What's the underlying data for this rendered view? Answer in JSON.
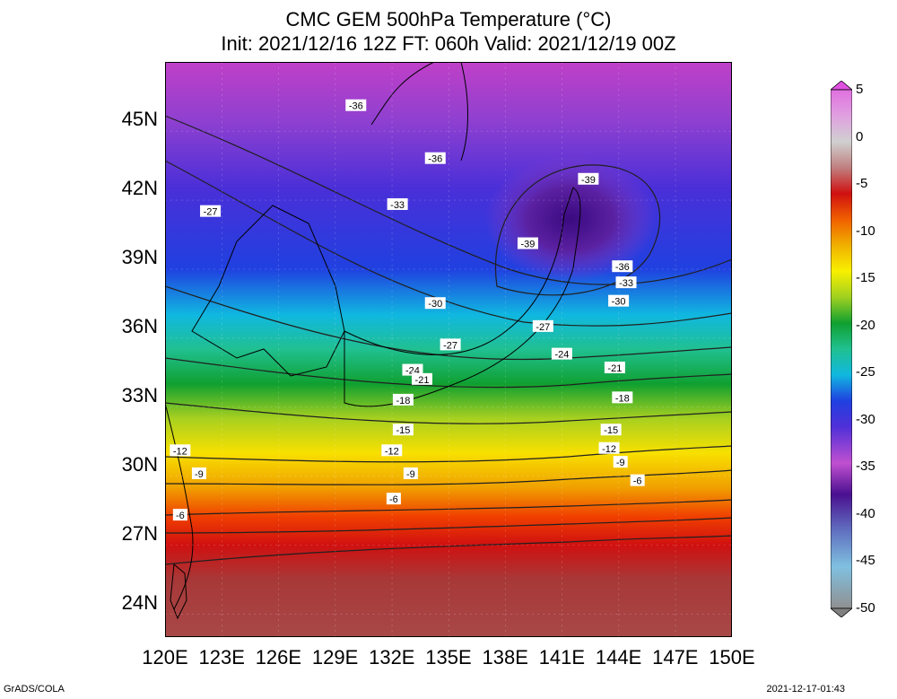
{
  "title_line1": "CMC GEM 500hPa Temperature (°C)",
  "title_line2": "Init: 2021/12/16 12Z  FT: 060h  Valid: 2021/12/19 00Z",
  "lat_labels": [
    "45N",
    "42N",
    "39N",
    "36N",
    "33N",
    "30N",
    "27N",
    "24N"
  ],
  "lat_values": [
    45,
    42,
    39,
    36,
    33,
    30,
    27,
    24
  ],
  "lon_labels": [
    "120E",
    "123E",
    "126E",
    "129E",
    "132E",
    "135E",
    "138E",
    "141E",
    "144E",
    "147E",
    "150E"
  ],
  "lon_values": [
    120,
    123,
    126,
    129,
    132,
    135,
    138,
    141,
    144,
    147,
    150
  ],
  "map_extent": {
    "lon_min": 120,
    "lon_max": 150,
    "lat_min": 22.5,
    "lat_max": 47.5
  },
  "colorbar": {
    "labels": [
      "5",
      "0",
      "-5",
      "-10",
      "-15",
      "-20",
      "-25",
      "-30",
      "-35",
      "-40",
      "-45",
      "-50"
    ],
    "values": [
      5,
      0,
      -5,
      -10,
      -15,
      -20,
      -25,
      -30,
      -35,
      -40,
      -45,
      -50
    ]
  },
  "contour_labels": [
    {
      "text": "-36",
      "lon": 130.1,
      "lat": 45.6
    },
    {
      "text": "-36",
      "lon": 134.3,
      "lat": 43.3
    },
    {
      "text": "-39",
      "lon": 142.4,
      "lat": 42.4
    },
    {
      "text": "-33",
      "lon": 132.3,
      "lat": 41.3
    },
    {
      "text": "-39",
      "lon": 139.2,
      "lat": 39.6
    },
    {
      "text": "-27",
      "lon": 122.4,
      "lat": 41.0
    },
    {
      "text": "-36",
      "lon": 144.2,
      "lat": 38.6
    },
    {
      "text": "-33",
      "lon": 144.4,
      "lat": 37.9
    },
    {
      "text": "-30",
      "lon": 134.3,
      "lat": 37.0
    },
    {
      "text": "-30",
      "lon": 144.0,
      "lat": 37.1
    },
    {
      "text": "-27",
      "lon": 140.0,
      "lat": 36.0
    },
    {
      "text": "-27",
      "lon": 135.1,
      "lat": 35.2
    },
    {
      "text": "-24",
      "lon": 141.0,
      "lat": 34.8
    },
    {
      "text": "-24",
      "lon": 133.1,
      "lat": 34.1
    },
    {
      "text": "-21",
      "lon": 133.6,
      "lat": 33.7
    },
    {
      "text": "-21",
      "lon": 143.8,
      "lat": 34.2
    },
    {
      "text": "-18",
      "lon": 132.6,
      "lat": 32.8
    },
    {
      "text": "-18",
      "lon": 144.2,
      "lat": 32.9
    },
    {
      "text": "-15",
      "lon": 132.6,
      "lat": 31.5
    },
    {
      "text": "-15",
      "lon": 143.6,
      "lat": 31.5
    },
    {
      "text": "-12",
      "lon": 120.8,
      "lat": 30.6
    },
    {
      "text": "-12",
      "lon": 132.0,
      "lat": 30.6
    },
    {
      "text": "-12",
      "lon": 143.5,
      "lat": 30.7
    },
    {
      "text": "-9",
      "lon": 121.8,
      "lat": 29.6
    },
    {
      "text": "-9",
      "lon": 133.0,
      "lat": 29.6
    },
    {
      "text": "-9",
      "lon": 144.1,
      "lat": 30.1
    },
    {
      "text": "-6",
      "lon": 132.1,
      "lat": 28.5
    },
    {
      "text": "-6",
      "lon": 145.0,
      "lat": 29.3
    },
    {
      "text": "-6",
      "lon": 120.8,
      "lat": 27.8
    }
  ],
  "footer_left": "GrADS/COLA",
  "footer_right": "2021-12-17-01:43"
}
